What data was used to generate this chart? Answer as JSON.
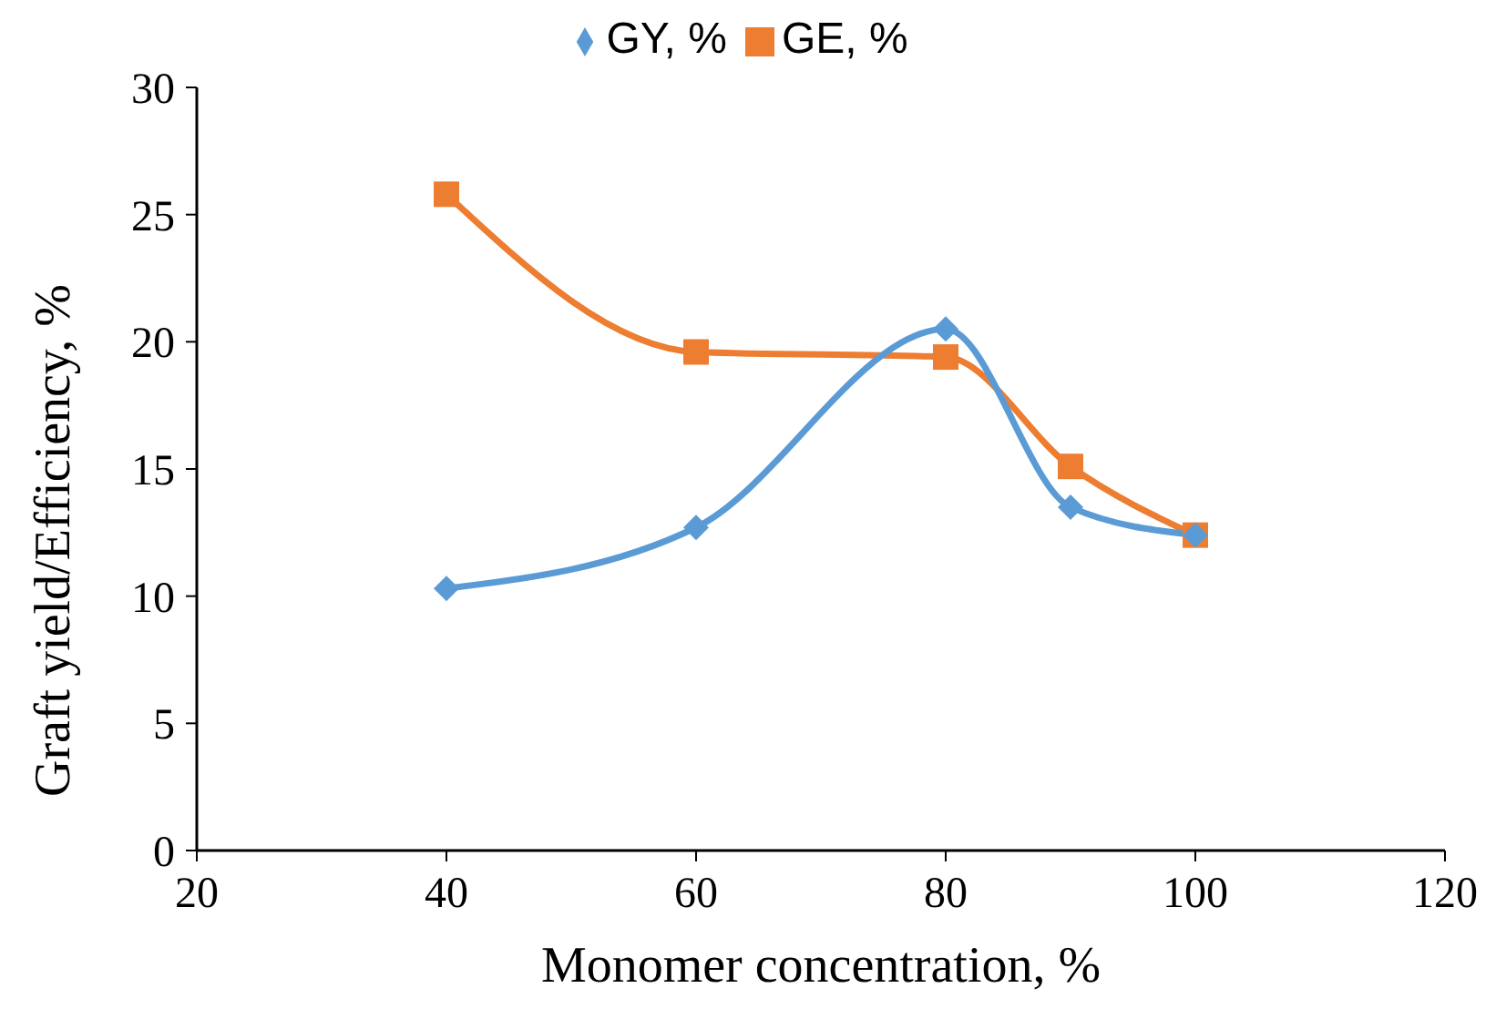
{
  "chart_data": {
    "type": "line",
    "xlabel": "Monomer concentration, %",
    "ylabel": "Graft yield/Efficiency, %",
    "x": [
      40,
      60,
      80,
      90,
      100
    ],
    "series": [
      {
        "name": "GY, %",
        "color": "#5b9bd5",
        "marker": "diamond",
        "values": [
          10.3,
          12.7,
          20.5,
          13.5,
          12.4
        ]
      },
      {
        "name": "GE, %",
        "color": "#ed7d31",
        "marker": "square",
        "values": [
          25.8,
          19.6,
          19.4,
          15.1,
          12.4
        ]
      }
    ],
    "xlim": [
      20,
      120
    ],
    "xticks": [
      20,
      40,
      60,
      80,
      100,
      120
    ],
    "ylim": [
      0,
      30
    ],
    "yticks": [
      0,
      5,
      10,
      15,
      20,
      25,
      30
    ],
    "grid": false,
    "legend": "top"
  }
}
